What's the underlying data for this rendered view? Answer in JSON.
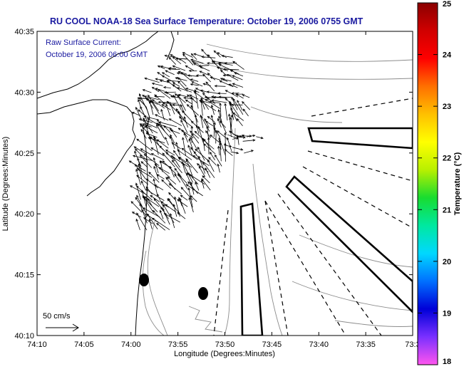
{
  "title": "RU COOL  NOAA-18  Sea Surface Temperature:  October 19, 2006 0755 GMT",
  "annotation": {
    "line1": "Raw Surface Current:",
    "line2": "October 19, 2006 06:00 GMT"
  },
  "scale_label": "50 cm/s",
  "colors": {
    "title": "#1a1aa0",
    "frame": "#000000",
    "coast": "#000000",
    "contour": "#8c8c8c",
    "arrow": "#000000"
  },
  "chart_data": {
    "type": "map",
    "xlabel": "Longitude (Degrees:Minutes)",
    "ylabel": "Latitude (Degrees:Minutes)",
    "x_ticks": [
      "74:10",
      "74:05",
      "74:00",
      "73:55",
      "73:50",
      "73:45",
      "73:40",
      "73:35",
      "73:3"
    ],
    "y_ticks": [
      "40:35",
      "40:30",
      "40:25",
      "40:20",
      "40:15",
      "40:10"
    ],
    "xlim_minutes_west": [
      70,
      30
    ],
    "ylim_minutes_north": [
      10,
      35
    ],
    "colorbar": {
      "label": "Temperature (°C)",
      "ticks": [
        "25",
        "24",
        "23",
        "22",
        "21",
        "20",
        "19",
        "18"
      ],
      "range": [
        18,
        25
      ],
      "colors": [
        "#ff55ee",
        "#7a30ff",
        "#0000d8",
        "#0070ff",
        "#00d8ff",
        "#00e8a0",
        "#18dc30",
        "#b8f000",
        "#ffff00",
        "#ffc000",
        "#ff7000",
        "#ff0000",
        "#d00000",
        "#8a0000"
      ]
    }
  }
}
